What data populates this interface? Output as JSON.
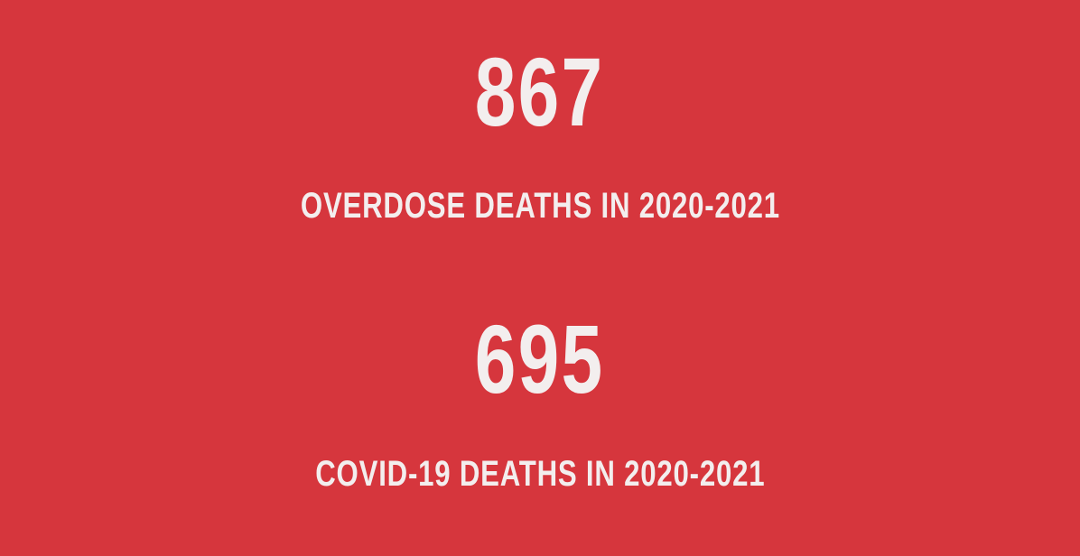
{
  "colors": {
    "background": "#d6363d",
    "text": "#f3eeee"
  },
  "stats": [
    {
      "value": "867",
      "caption": "OVERDOSE DEATHS IN 2020-2021"
    },
    {
      "value": "695",
      "caption": "COVID-19 DEATHS IN 2020-2021"
    }
  ]
}
